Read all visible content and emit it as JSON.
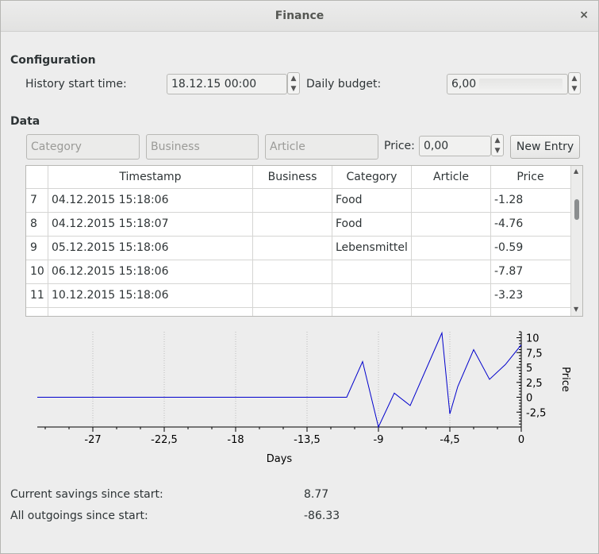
{
  "window": {
    "title": "Finance",
    "close_glyph": "×"
  },
  "config": {
    "heading": "Configuration",
    "history_label": "History start time:",
    "history_value": "18.12.15 00:00",
    "budget_label": "Daily budget:",
    "budget_value": "6,00"
  },
  "data": {
    "heading": "Data",
    "category_placeholder": "Category",
    "business_placeholder": "Business",
    "article_placeholder": "Article",
    "price_label": "Price:",
    "price_value": "0,00",
    "new_entry_label": "New Entry"
  },
  "table": {
    "columns": [
      "Timestamp",
      "Business",
      "Category",
      "Article",
      "Price"
    ],
    "rows": [
      {
        "n": "7",
        "timestamp": "04.12.2015 15:18:06",
        "business": "",
        "category": "Food",
        "article": "",
        "price": "-1.28"
      },
      {
        "n": "8",
        "timestamp": "04.12.2015 15:18:07",
        "business": "",
        "category": "Food",
        "article": "",
        "price": "-4.76"
      },
      {
        "n": "9",
        "timestamp": "05.12.2015 15:18:06",
        "business": "",
        "category": "Lebensmittel",
        "article": "",
        "price": "-0.59"
      },
      {
        "n": "10",
        "timestamp": "06.12.2015 15:18:06",
        "business": "",
        "category": "",
        "article": "",
        "price": "-7.87"
      },
      {
        "n": "11",
        "timestamp": "10.12.2015 15:18:06",
        "business": "",
        "category": "",
        "article": "",
        "price": "-3.23"
      }
    ]
  },
  "chart_data": {
    "type": "line",
    "xlabel": "Days",
    "ylabel": "Price",
    "xlim": [
      -30.5,
      0
    ],
    "ylim": [
      -5,
      11
    ],
    "xticks": [
      "-27",
      "-22,5",
      "-18",
      "-13,5",
      "-9",
      "-4,5",
      "0"
    ],
    "xtick_values": [
      -27,
      -22.5,
      -18,
      -13.5,
      -9,
      -4.5,
      0
    ],
    "yticks": [
      "10",
      "7,5",
      "5",
      "2,5",
      "0",
      "-2,5"
    ],
    "ytick_values": [
      10,
      7.5,
      5,
      2.5,
      0,
      -2.5
    ],
    "grid": "vertical dotted",
    "line_color": "#0000cc",
    "x": [
      -30.5,
      -11,
      -10,
      -9,
      -8,
      -7,
      -5,
      -4.5,
      -4,
      -3,
      -2,
      -1,
      0
    ],
    "y": [
      0,
      0,
      6,
      -5,
      0.7,
      -1.4,
      10.8,
      -2.8,
      1.8,
      8,
      3,
      5.5,
      8.8
    ]
  },
  "summary": {
    "savings_label": "Current savings since start:",
    "savings_value": "8.77",
    "outgoings_label": "All outgoings since start:",
    "outgoings_value": "-86.33"
  }
}
